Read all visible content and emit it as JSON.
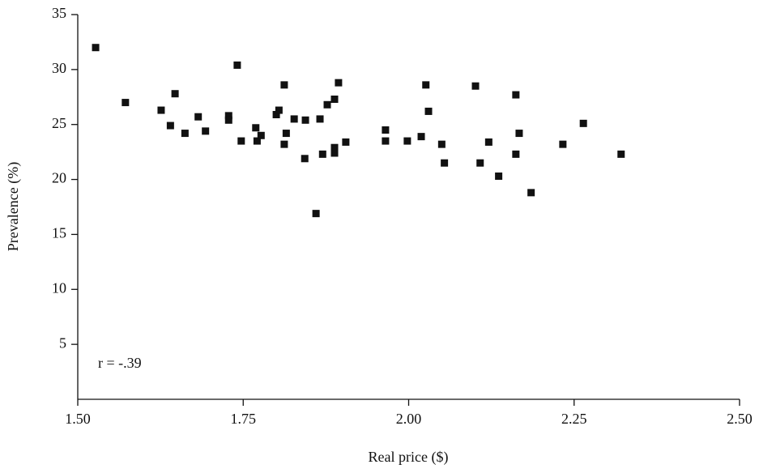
{
  "chart_data": {
    "type": "scatter",
    "x_label": "Real price ($)",
    "y_label": "Prevalence (%)",
    "annotation": "r = -.39",
    "color": "#111111",
    "xlim": [
      1.5,
      2.5
    ],
    "xticks": [
      {
        "value": 1.5,
        "label": "1.50"
      },
      {
        "value": 1.75,
        "label": "1.75"
      },
      {
        "value": 2.0,
        "label": "2.00"
      },
      {
        "value": 2.25,
        "label": "2.25"
      },
      {
        "value": 2.5,
        "label": "2.50"
      }
    ],
    "ylim": [
      0,
      35
    ],
    "yticks": [
      5,
      10,
      15,
      20,
      25,
      30,
      35
    ],
    "x": [
      1.527,
      1.572,
      1.626,
      1.64,
      1.647,
      1.662,
      1.682,
      1.693,
      1.728,
      1.728,
      1.741,
      1.747,
      1.769,
      1.771,
      1.777,
      1.8,
      1.804,
      1.812,
      1.812,
      1.815,
      1.827,
      1.843,
      1.844,
      1.86,
      1.866,
      1.87,
      1.877,
      1.888,
      1.888,
      1.888,
      1.894,
      1.905,
      1.965,
      1.965,
      1.998,
      2.019,
      2.026,
      2.03,
      2.05,
      2.054,
      2.101,
      2.108,
      2.121,
      2.136,
      2.162,
      2.162,
      2.167,
      2.185,
      2.233,
      2.264,
      2.321
    ],
    "values": [
      32.0,
      27.0,
      26.3,
      24.9,
      27.8,
      24.2,
      25.7,
      24.4,
      25.8,
      25.4,
      30.4,
      23.5,
      24.7,
      23.5,
      24.0,
      25.9,
      26.3,
      28.6,
      23.2,
      24.2,
      25.5,
      21.9,
      25.4,
      16.9,
      25.5,
      22.3,
      26.8,
      27.3,
      22.9,
      22.4,
      28.8,
      23.4,
      24.5,
      23.5,
      23.5,
      23.9,
      28.6,
      26.2,
      23.2,
      21.5,
      28.5,
      21.5,
      23.4,
      20.3,
      27.7,
      22.3,
      24.2,
      18.8,
      23.2,
      25.1,
      22.3
    ]
  }
}
